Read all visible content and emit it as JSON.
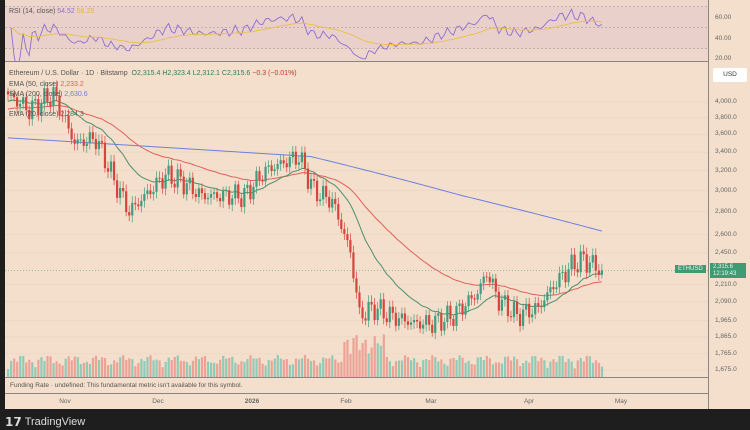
{
  "rsi": {
    "label": "RSI (14, close)",
    "value": "54.52",
    "ma_value": "58.25",
    "ticks": [
      "60.00",
      "40.00",
      "20.00"
    ]
  },
  "legend": {
    "title": "Ethereum / U.S. Dollar · 1D · Bitstamp",
    "o": "O2,315.4",
    "h": "H2,323.4",
    "l": "L2,312.1",
    "c": "C2,315.6",
    "chg": "−0.3 (−0.01%)",
    "ema50_label": "EMA (50, close)",
    "ema50_value": "2,233.2",
    "sma200_label": "SMA (200, close)",
    "sma200_value": "2,630.6",
    "ema20_label": "EMA (20, close)",
    "ema20_value": "2,284.3"
  },
  "axis": {
    "currency": "USD",
    "ticks": [
      "4,000.0",
      "3,800.0",
      "3,600.0",
      "3,400.0",
      "3,200.0",
      "3,000.0",
      "2,800.0",
      "2,600.0",
      "2,450.0",
      "2,210.0",
      "2,090.0",
      "1,965.0",
      "1,865.0",
      "1,765.0",
      "1,675.0"
    ],
    "symbol": "ETHUSD",
    "last_price": "2,315.6",
    "countdown": "12:19:43"
  },
  "funding": "Funding Rate · undefined: This fundamental metric isn't available for this symbol.",
  "months": [
    "Nov",
    "Dec",
    "2026",
    "Feb",
    "Mar",
    "Apr",
    "May"
  ],
  "brand": "TradingView",
  "colors": {
    "up": "#3f9c80",
    "down": "#d6453d",
    "ema50": "#e0605a",
    "sma200": "#6f7fe0",
    "ema20": "#4f8f6a",
    "rsi": "#8e6fd0",
    "rsi_ma": "#e8c040"
  },
  "chart_data": {
    "type": "candlestick",
    "scale": "log",
    "ylim": [
      1675,
      4000
    ],
    "keypoints_day_close": [
      [
        0,
        4100
      ],
      [
        7,
        3900
      ],
      [
        15,
        4100
      ],
      [
        22,
        3500
      ],
      [
        29,
        3550
      ],
      [
        35,
        3100
      ],
      [
        40,
        2800
      ],
      [
        47,
        3000
      ],
      [
        52,
        3150
      ],
      [
        57,
        3100
      ],
      [
        64,
        2950
      ],
      [
        71,
        2950
      ],
      [
        78,
        2950
      ],
      [
        85,
        3200
      ],
      [
        92,
        3300
      ],
      [
        96,
        3350
      ],
      [
        101,
        3000
      ],
      [
        107,
        2900
      ],
      [
        113,
        2450
      ],
      [
        116,
        2000
      ],
      [
        121,
        2050
      ],
      [
        126,
        2000
      ],
      [
        134,
        1950
      ],
      [
        140,
        1950
      ],
      [
        147,
        2000
      ],
      [
        155,
        2150
      ],
      [
        158,
        2300
      ],
      [
        162,
        2100
      ],
      [
        168,
        2000
      ],
      [
        175,
        2050
      ],
      [
        180,
        2200
      ],
      [
        186,
        2350
      ],
      [
        190,
        2400
      ],
      [
        196,
        2315
      ]
    ],
    "sma200_keypoints": [
      [
        0,
        3560
      ],
      [
        100,
        3350
      ],
      [
        150,
        2950
      ],
      [
        196,
        2630
      ]
    ]
  }
}
